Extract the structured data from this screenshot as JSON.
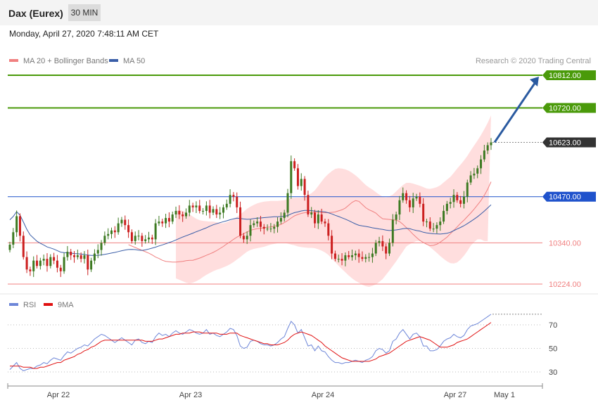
{
  "header": {
    "title": "Dax (Eurex)",
    "timeframe": "30 MIN"
  },
  "date_line": "Monday, April 27, 2020 7:48:11 AM CET",
  "legend": {
    "ma20": "MA 20 + Bollinger Bands",
    "ma50": "MA 50"
  },
  "credit": "Research © 2020 Trading Central",
  "colors": {
    "up_candle": "#3d7a22",
    "down_candle": "#cc1f1f",
    "bollinger_fill": "#ffdede",
    "ma20": "#f08080",
    "ma50": "#3a5ea8",
    "resistance": "#4a9a0a",
    "pivot": "#1f52cc",
    "support": "#f08080",
    "arrow": "#2a5aa0",
    "rsi": "#6d86d8",
    "rsi_ma": "#e01010"
  },
  "chart_data": [
    {
      "type": "candlestick",
      "instrument": "Dax (Eurex)",
      "interval": "30 MIN",
      "x_ticks": [
        "Apr 22",
        "Apr 23",
        "Apr 24",
        "Apr 27",
        "May 1"
      ],
      "ylim": [
        10200,
        10840
      ],
      "levels": [
        {
          "label": "10812.00",
          "value": 10812,
          "kind": "resistance"
        },
        {
          "label": "10720.00",
          "value": 10720,
          "kind": "resistance"
        },
        {
          "label": "10623.00",
          "value": 10623,
          "kind": "last"
        },
        {
          "label": "10470.00",
          "value": 10470,
          "kind": "pivot"
        },
        {
          "label": "10340.00",
          "value": 10340,
          "kind": "support"
        },
        {
          "label": "10224.00",
          "value": 10224,
          "kind": "support"
        }
      ],
      "close": [
        10335,
        10370,
        10415,
        10360,
        10300,
        10265,
        10260,
        10290,
        10275,
        10290,
        10295,
        10275,
        10300,
        10290,
        10270,
        10260,
        10300,
        10315,
        10305,
        10300,
        10305,
        10295,
        10305,
        10265,
        10290,
        10310,
        10320,
        10340,
        10360,
        10365,
        10375,
        10370,
        10395,
        10405,
        10390,
        10370,
        10345,
        10360,
        10360,
        10345,
        10350,
        10355,
        10350,
        10395,
        10400,
        10395,
        10410,
        10400,
        10420,
        10430,
        10420,
        10415,
        10425,
        10445,
        10440,
        10445,
        10430,
        10430,
        10445,
        10425,
        10435,
        10420,
        10425,
        10440,
        10450,
        10475,
        10470,
        10440,
        10360,
        10350,
        10360,
        10390,
        10395,
        10400,
        10385,
        10380,
        10380,
        10380,
        10385,
        10400,
        10410,
        10425,
        10480,
        10570,
        10550,
        10500,
        10520,
        10475,
        10420,
        10425,
        10395,
        10420,
        10400,
        10395,
        10360,
        10310,
        10295,
        10295,
        10290,
        10305,
        10300,
        10305,
        10310,
        10300,
        10295,
        10300,
        10300,
        10310,
        10340,
        10345,
        10330,
        10310,
        10340,
        10405,
        10420,
        10460,
        10480,
        10460,
        10440,
        10465,
        10470,
        10450,
        10400,
        10400,
        10380,
        10380,
        10390,
        10400,
        10430,
        10450,
        10455,
        10475,
        10460,
        10450,
        10470,
        10510,
        10530,
        10535,
        10550,
        10575,
        10600,
        10615,
        10623
      ],
      "ma20": [
        10335,
        10331,
        10327,
        10323,
        10319,
        10315,
        10311,
        10306,
        10300,
        10296,
        10291,
        10288,
        10287,
        10286,
        10286,
        10287,
        10288,
        10290,
        10291,
        10291,
        10294,
        10297,
        10301,
        10305,
        10309,
        10313,
        10318,
        10324,
        10330,
        10337,
        10343,
        10350,
        10356,
        10361,
        10366,
        10371,
        10375,
        10378,
        10380,
        10381,
        10383,
        10384,
        10385,
        10387,
        10389,
        10392,
        10397,
        10403,
        10410,
        10416,
        10420,
        10423,
        10425,
        10426,
        10426,
        10426,
        10426,
        10425,
        10425,
        10425,
        10426,
        10427,
        10430,
        10433,
        10438,
        10446,
        10454,
        10459,
        10457,
        10448,
        10439,
        10433,
        10429,
        10424,
        10415,
        10408,
        10407,
        10406,
        10405,
        10404,
        10400,
        10392,
        10383,
        10374,
        10364,
        10355,
        10347,
        10341,
        10336,
        10332,
        10333,
        10336,
        10342,
        10349,
        10356,
        10366,
        10375,
        10385,
        10395,
        10404,
        10414,
        10424,
        10435,
        10447,
        10459,
        10474,
        10491,
        10512
      ],
      "bb_upper": [
        10430,
        10432,
        10430,
        10426,
        10420,
        10414,
        10408,
        10404,
        10402,
        10401,
        10400,
        10400,
        10398,
        10396,
        10395,
        10398,
        10402,
        10407,
        10413,
        10420,
        10428,
        10436,
        10442,
        10447,
        10451,
        10454,
        10456,
        10457,
        10458,
        10458,
        10458,
        10459,
        10460,
        10463,
        10466,
        10467,
        10467,
        10467,
        10470,
        10474,
        10480,
        10488,
        10500,
        10513,
        10525,
        10534,
        10542,
        10548,
        10550,
        10549,
        10547,
        10543,
        10537,
        10530,
        10522,
        10512,
        10503,
        10496,
        10490,
        10483,
        10476,
        10470,
        10468,
        10471,
        10476,
        10485,
        10494,
        10503,
        10509,
        10509,
        10507,
        10504,
        10501,
        10497,
        10493,
        10492,
        10494,
        10497,
        10502,
        10510,
        10518,
        10526,
        10537,
        10549,
        10560,
        10572,
        10585,
        10600,
        10614,
        10628,
        10643,
        10660,
        10678,
        10699
      ],
      "bb_lower": [
        10240,
        10236,
        10232,
        10228,
        10226,
        10228,
        10232,
        10237,
        10244,
        10250,
        10255,
        10260,
        10264,
        10267,
        10271,
        10275,
        10280,
        10286,
        10293,
        10300,
        10308,
        10315,
        10320,
        10323,
        10325,
        10327,
        10329,
        10332,
        10335,
        10337,
        10339,
        10340,
        10340,
        10338,
        10335,
        10333,
        10330,
        10328,
        10327,
        10326,
        10326,
        10325,
        10322,
        10318,
        10313,
        10306,
        10296,
        10286,
        10276,
        10266,
        10257,
        10248,
        10240,
        10233,
        10228,
        10222,
        10218,
        10216,
        10219,
        10223,
        10230,
        10238,
        10250,
        10262,
        10275,
        10288,
        10302,
        10316,
        10330,
        10336,
        10341,
        10345,
        10345,
        10342,
        10336,
        10328,
        10320,
        10312,
        10303,
        10295,
        10288,
        10283,
        10282,
        10285,
        10293,
        10304,
        10317,
        10332,
        10342,
        10350,
        10350,
        10345,
        10345
      ]
    },
    {
      "type": "line",
      "title": "RSI",
      "y_ticks": [
        30,
        50,
        70
      ],
      "series": [
        {
          "name": "RSI",
          "values": [
            32,
            35,
            38,
            33,
            31,
            32,
            33,
            33,
            35,
            36,
            38,
            37,
            40,
            42,
            41,
            40,
            44,
            47,
            46,
            48,
            50,
            51,
            53,
            52,
            55,
            58,
            60,
            62,
            61,
            59,
            57,
            55,
            57,
            59,
            57,
            55,
            53,
            57,
            58,
            55,
            54,
            56,
            55,
            60,
            63,
            61,
            62,
            60,
            63,
            65,
            63,
            62,
            64,
            66,
            65,
            63,
            62,
            63,
            66,
            62,
            63,
            61,
            60,
            62,
            64,
            67,
            66,
            61,
            52,
            50,
            51,
            56,
            57,
            56,
            54,
            53,
            53,
            52,
            53,
            55,
            58,
            60,
            67,
            73,
            70,
            63,
            66,
            59,
            52,
            53,
            48,
            52,
            48,
            47,
            43,
            40,
            38,
            38,
            37,
            38,
            38,
            39,
            40,
            39,
            38,
            40,
            41,
            43,
            48,
            50,
            49,
            46,
            48,
            56,
            58,
            63,
            66,
            62,
            58,
            62,
            63,
            60,
            52,
            52,
            48,
            48,
            49,
            52,
            56,
            58,
            59,
            62,
            60,
            59,
            61,
            66,
            69,
            70,
            71,
            73,
            75,
            77,
            79
          ]
        },
        {
          "name": "9MA",
          "values": [
            35,
            35,
            35,
            35,
            34,
            34,
            34,
            33,
            33,
            34,
            34,
            35,
            36,
            37,
            38,
            38,
            40,
            41,
            42,
            43,
            45,
            46,
            48,
            49,
            51,
            52,
            54,
            56,
            57,
            57,
            57,
            57,
            57,
            57,
            57,
            57,
            57,
            57,
            57,
            57,
            56,
            56,
            56,
            57,
            58,
            58,
            59,
            60,
            61,
            62,
            62,
            63,
            63,
            63,
            64,
            64,
            64,
            63,
            63,
            63,
            63,
            63,
            62,
            62,
            62,
            63,
            63,
            63,
            61,
            60,
            59,
            58,
            57,
            56,
            55,
            54,
            54,
            53,
            53,
            53,
            54,
            55,
            57,
            60,
            62,
            63,
            64,
            63,
            62,
            61,
            59,
            57,
            55,
            52,
            50,
            48,
            46,
            44,
            42,
            41,
            40,
            39,
            39,
            39,
            39,
            39,
            39,
            40,
            41,
            43,
            44,
            45,
            46,
            48,
            50,
            52,
            54,
            56,
            57,
            58,
            59,
            60,
            59,
            58,
            57,
            55,
            53,
            51,
            51,
            51,
            52,
            53,
            55,
            56,
            57,
            58,
            60,
            62,
            64,
            66,
            68,
            70,
            72
          ]
        }
      ]
    }
  ]
}
